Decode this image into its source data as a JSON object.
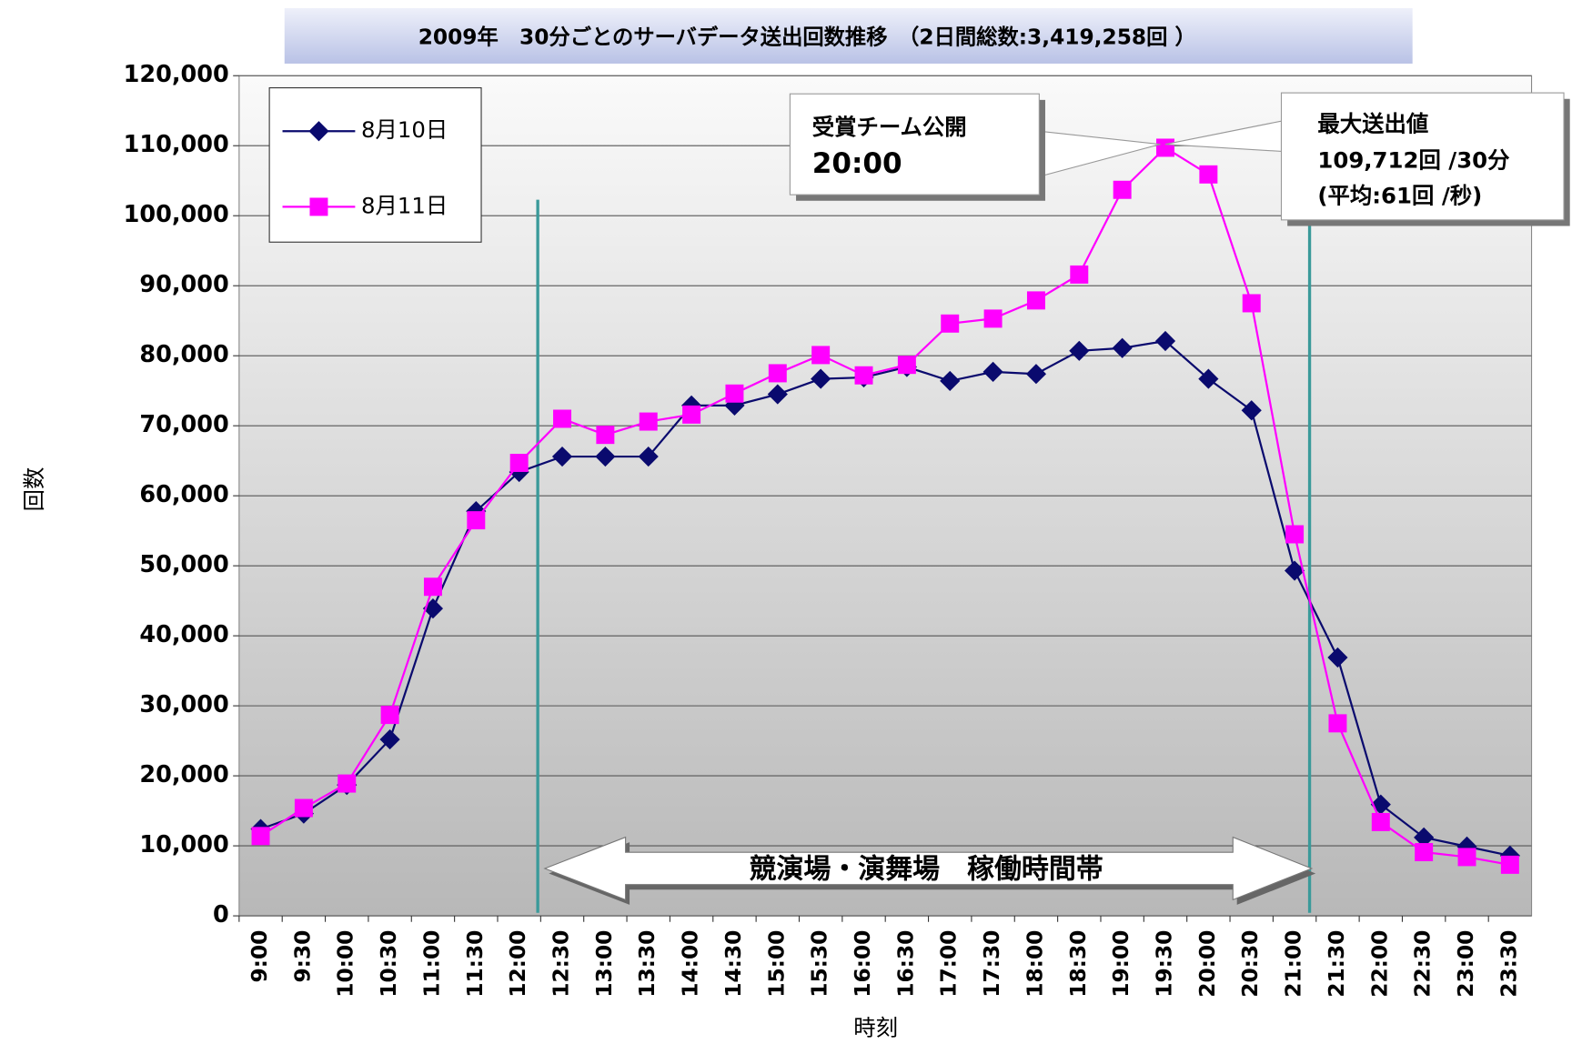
{
  "chart_data": {
    "type": "line",
    "title": "2009年　30分ごとのサーバデータ送出回数推移　（2日間総数:3,419,258回 ）",
    "y_label": "回数",
    "x_label": "時刻",
    "categories": [
      "9:00",
      "9:30",
      "10:00",
      "10:30",
      "11:00",
      "11:30",
      "12:00",
      "12:30",
      "13:00",
      "13:30",
      "14:00",
      "14:30",
      "15:00",
      "15:30",
      "16:00",
      "16:30",
      "17:00",
      "17:30",
      "18:00",
      "18:30",
      "19:00",
      "19:30",
      "20:00",
      "20:30",
      "21:00",
      "21:30",
      "22:00",
      "22:30",
      "23:00",
      "23:30"
    ],
    "series": [
      {
        "name": "8月10日",
        "color": "#0a0a6e",
        "marker": "diamond",
        "values": [
          12400,
          14600,
          18700,
          25200,
          43900,
          57800,
          63400,
          65600,
          65600,
          65600,
          72900,
          72900,
          74500,
          76700,
          76900,
          78400,
          76400,
          77700,
          77400,
          80700,
          81100,
          82100,
          76700,
          72200,
          49300,
          36900,
          15900,
          11200,
          9900,
          8600
        ]
      },
      {
        "name": "8月11日",
        "color": "#ff00ff",
        "marker": "square",
        "values": [
          11400,
          15400,
          18900,
          28700,
          47000,
          56500,
          64700,
          71000,
          68700,
          70600,
          71600,
          74600,
          77500,
          80100,
          77200,
          78700,
          84600,
          85300,
          87900,
          91600,
          103700,
          109712,
          105900,
          87500,
          54500,
          27500,
          13400,
          9100,
          8400,
          7300
        ]
      }
    ],
    "ylim": [
      0,
      120000
    ],
    "yticks": [
      0,
      {
        "value": 10000,
        "label": "10,000"
      },
      {
        "value": 20000,
        "label": "20,000"
      },
      {
        "value": 30000,
        "label": "30,000"
      },
      {
        "value": 40000,
        "label": "40,000"
      },
      {
        "value": 50000,
        "label": "50,000"
      },
      {
        "value": 60000,
        "label": "60,000"
      },
      {
        "value": 70000,
        "label": "70,000"
      },
      {
        "value": 80000,
        "label": "80,000"
      },
      {
        "value": 90000,
        "label": "90,000"
      },
      {
        "value": 100000,
        "label": "100,000"
      },
      {
        "value": 110000,
        "label": "110,000"
      },
      {
        "value": 120000,
        "label": "120,000"
      }
    ],
    "grid": true,
    "legend": "upper left",
    "annotations": {
      "release": [
        "受賞チーム公開",
        "20:00"
      ],
      "peak": [
        "最大送出値",
        "109,712回 /30分",
        "(平均:61回 /秒)"
      ],
      "band": "競演場・演舞場　稼働時間帯"
    }
  }
}
